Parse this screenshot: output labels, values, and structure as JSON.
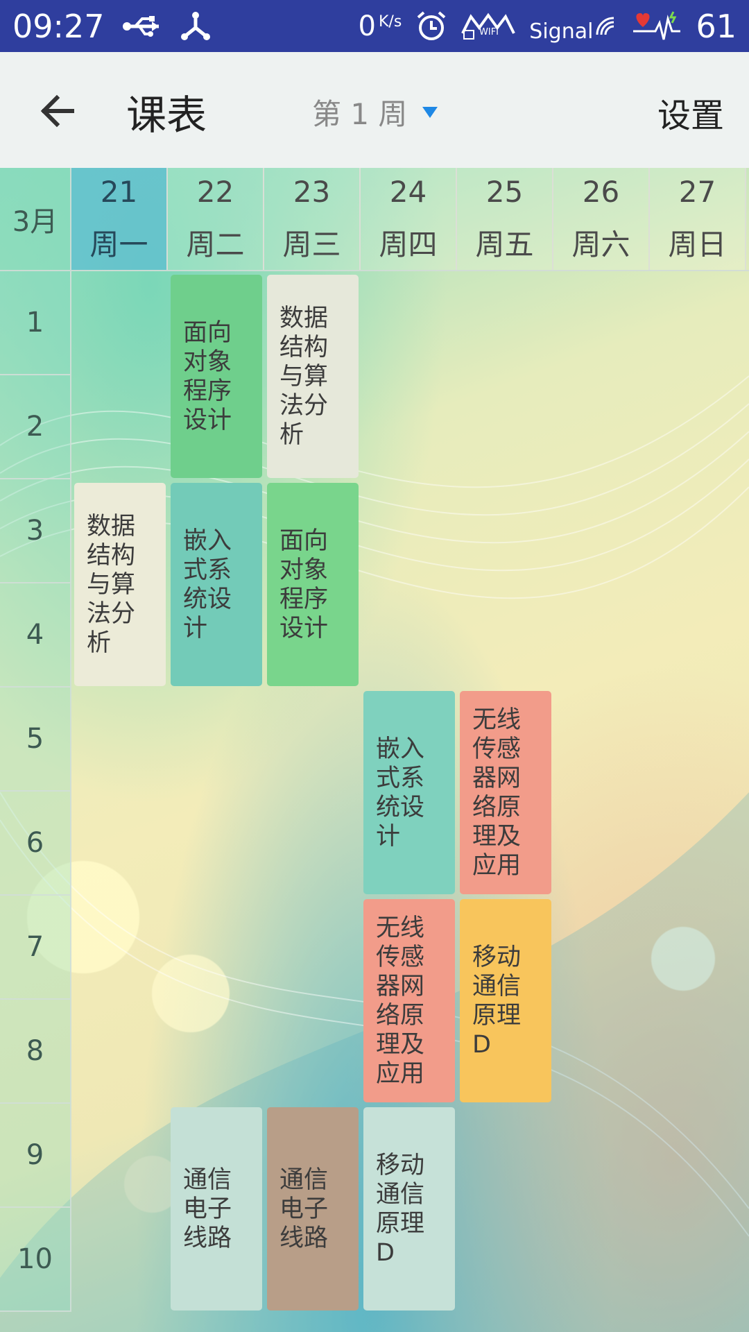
{
  "status": {
    "time": "09:27",
    "speed": "0",
    "speed_unit": "K/s",
    "signal_text": "Signal",
    "battery": "61",
    "wifi_text": "WIFI"
  },
  "toolbar": {
    "title": "课表",
    "week": "第 1 周",
    "settings": "设置"
  },
  "month": "3月",
  "days": [
    {
      "date": "21",
      "weekday": "周一"
    },
    {
      "date": "22",
      "weekday": "周二"
    },
    {
      "date": "23",
      "weekday": "周三"
    },
    {
      "date": "24",
      "weekday": "周四"
    },
    {
      "date": "25",
      "weekday": "周五"
    },
    {
      "date": "26",
      "weekday": "周六"
    },
    {
      "date": "27",
      "weekday": "周日"
    }
  ],
  "periods": [
    "1",
    "2",
    "3",
    "4",
    "5",
    "6",
    "7",
    "8",
    "9",
    "10"
  ],
  "courses": [
    {
      "name": "面向对象程序设计",
      "day": 2,
      "start": 1,
      "end": 2,
      "color": "#6fcf8c"
    },
    {
      "name": "数据结构与算法分析",
      "day": 3,
      "start": 1,
      "end": 2,
      "color": "#e6e8da"
    },
    {
      "name": "数据结构与算法分析",
      "day": 1,
      "start": 3,
      "end": 4,
      "color": "#ecebd8"
    },
    {
      "name": "嵌入式系统设计",
      "day": 2,
      "start": 3,
      "end": 4,
      "color": "#73cbb8"
    },
    {
      "name": "面向对象程序设计",
      "day": 3,
      "start": 3,
      "end": 4,
      "color": "#79d58c"
    },
    {
      "name": "嵌入式系统设计",
      "day": 4,
      "start": 5,
      "end": 6,
      "color": "#7fd1be"
    },
    {
      "name": "无线传感器网络原理及应用",
      "day": 5,
      "start": 5,
      "end": 6,
      "color": "#f29c8a"
    },
    {
      "name": "无线传感器网络原理及应用",
      "day": 4,
      "start": 7,
      "end": 8,
      "color": "#f29c8a"
    },
    {
      "name": "移动通信原理D",
      "day": 5,
      "start": 7,
      "end": 8,
      "color": "#f8c55c"
    },
    {
      "name": "通信电子线路",
      "day": 2,
      "start": 9,
      "end": 10,
      "color": "#c4e0d6"
    },
    {
      "name": "通信电子线路",
      "day": 3,
      "start": 9,
      "end": 10,
      "color": "#b89e88"
    },
    {
      "name": "移动通信原理D",
      "day": 4,
      "start": 9,
      "end": 10,
      "color": "#c6e1d8"
    }
  ]
}
